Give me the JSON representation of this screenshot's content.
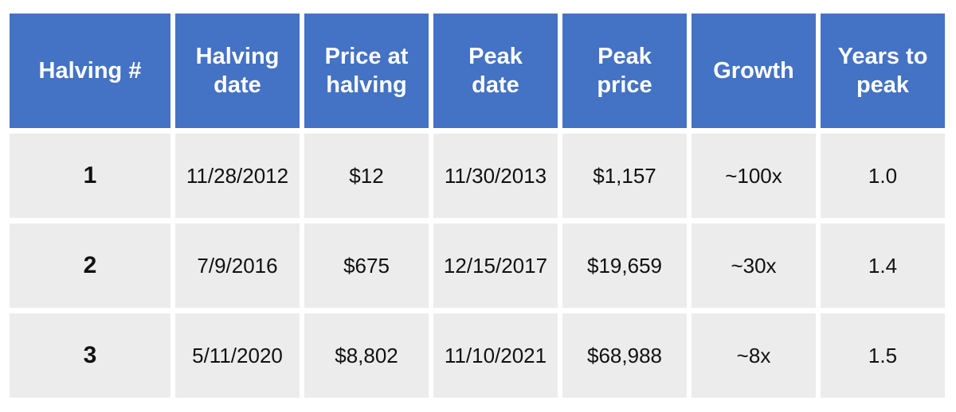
{
  "chart_data": {
    "type": "table",
    "columns": [
      "Halving #",
      "Halving\ndate",
      "Price at\nhalving",
      "Peak\ndate",
      "Peak\nprice",
      "Growth",
      "Years to\npeak"
    ],
    "rows": [
      [
        "1",
        "11/28/2012",
        "$12",
        "11/30/2013",
        "$1,157",
        "~100x",
        "1.0"
      ],
      [
        "2",
        "7/9/2016",
        "$675",
        "12/15/2017",
        "$19,659",
        "~30x",
        "1.4"
      ],
      [
        "3",
        "5/11/2020",
        "$8,802",
        "11/10/2021",
        "$68,988",
        "~8x",
        "1.5"
      ]
    ]
  },
  "colors": {
    "header_bg": "#4472c4",
    "header_text": "#ffffff",
    "body_bg": "#ececec",
    "body_text": "#111111"
  }
}
